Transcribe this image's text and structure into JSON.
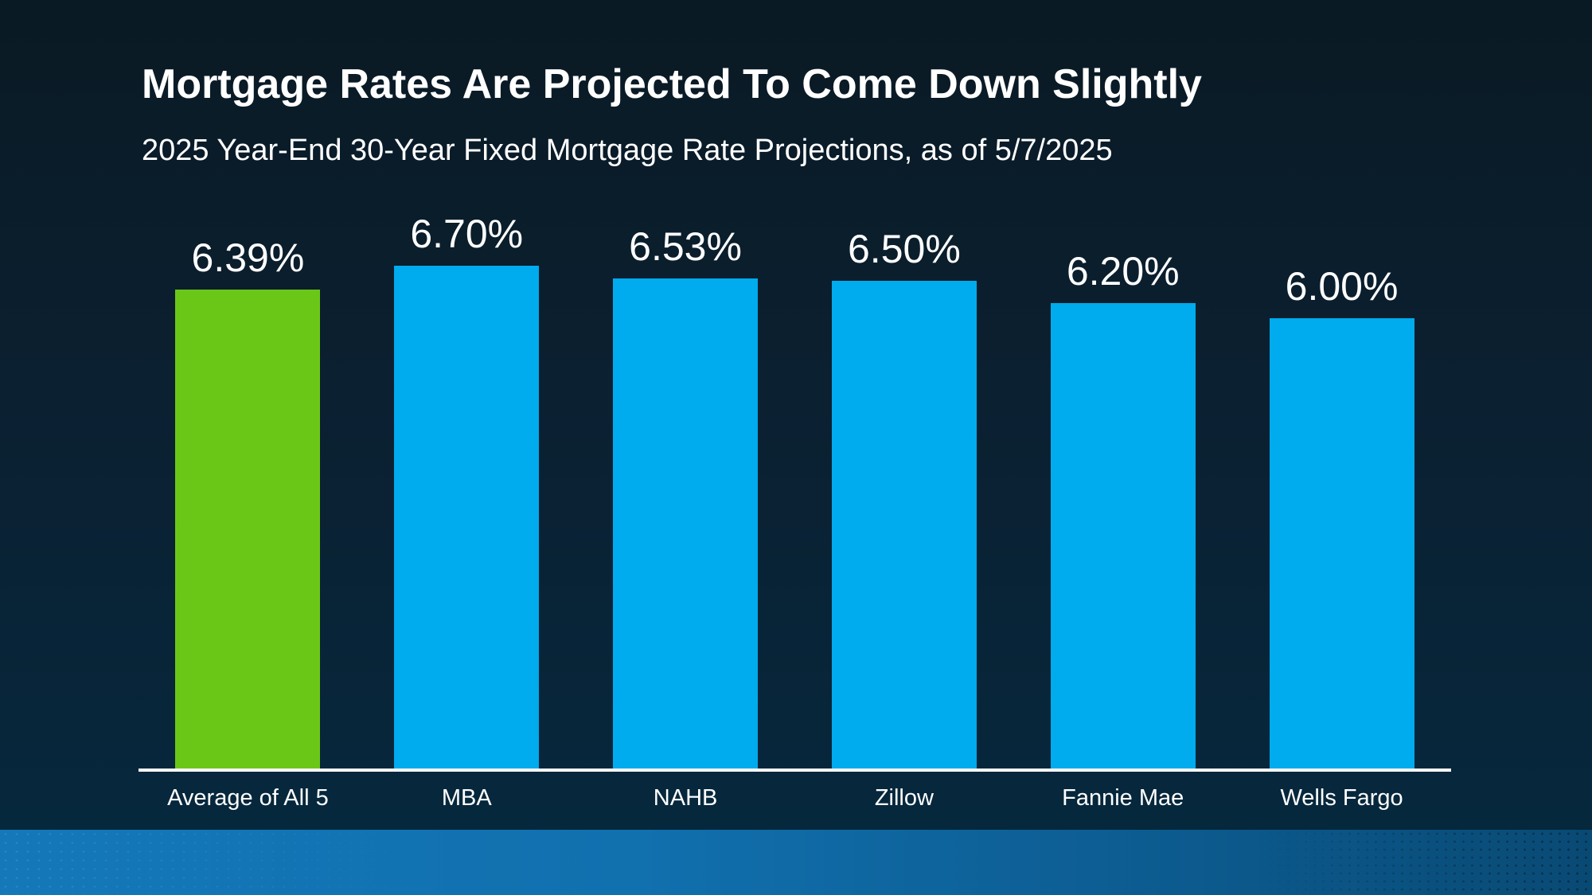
{
  "header": {
    "title": "Mortgage Rates Are Projected To Come Down Slightly",
    "subtitle": "2025 Year-End 30-Year Fixed Mortgage Rate Projections, as of 5/7/2025"
  },
  "chart_data": {
    "type": "bar",
    "title": "Mortgage Rates Are Projected To Come Down Slightly",
    "subtitle": "2025 Year-End 30-Year Fixed Mortgage Rate Projections, as of 5/7/2025",
    "categories": [
      "Average of All 5",
      "MBA",
      "NAHB",
      "Zillow",
      "Fannie Mae",
      "Wells Fargo"
    ],
    "values": [
      6.39,
      6.7,
      6.53,
      6.5,
      6.2,
      6.0
    ],
    "value_labels": [
      "6.39%",
      "6.70%",
      "6.53%",
      "6.50%",
      "6.20%",
      "6.00%"
    ],
    "bar_colors": [
      "#6BC717",
      "#00ABEE",
      "#00ABEE",
      "#00ABEE",
      "#00ABEE",
      "#00ABEE"
    ],
    "unit": "%",
    "xlabel": "",
    "ylabel": "",
    "ylim": [
      0,
      7
    ],
    "grid": false,
    "legend": "none",
    "value_label_position": "above-bar",
    "highlight_category": "Average of All 5",
    "axis_line_color": "#FFFFFF"
  },
  "colors": {
    "background_top": "#0A1A24",
    "background_bottom": "#05293F",
    "bar_green": "#6BC717",
    "bar_blue": "#00ABEE",
    "text": "#FFFFFF",
    "footer_left": "#1478B9",
    "footer_right": "#094A74"
  }
}
